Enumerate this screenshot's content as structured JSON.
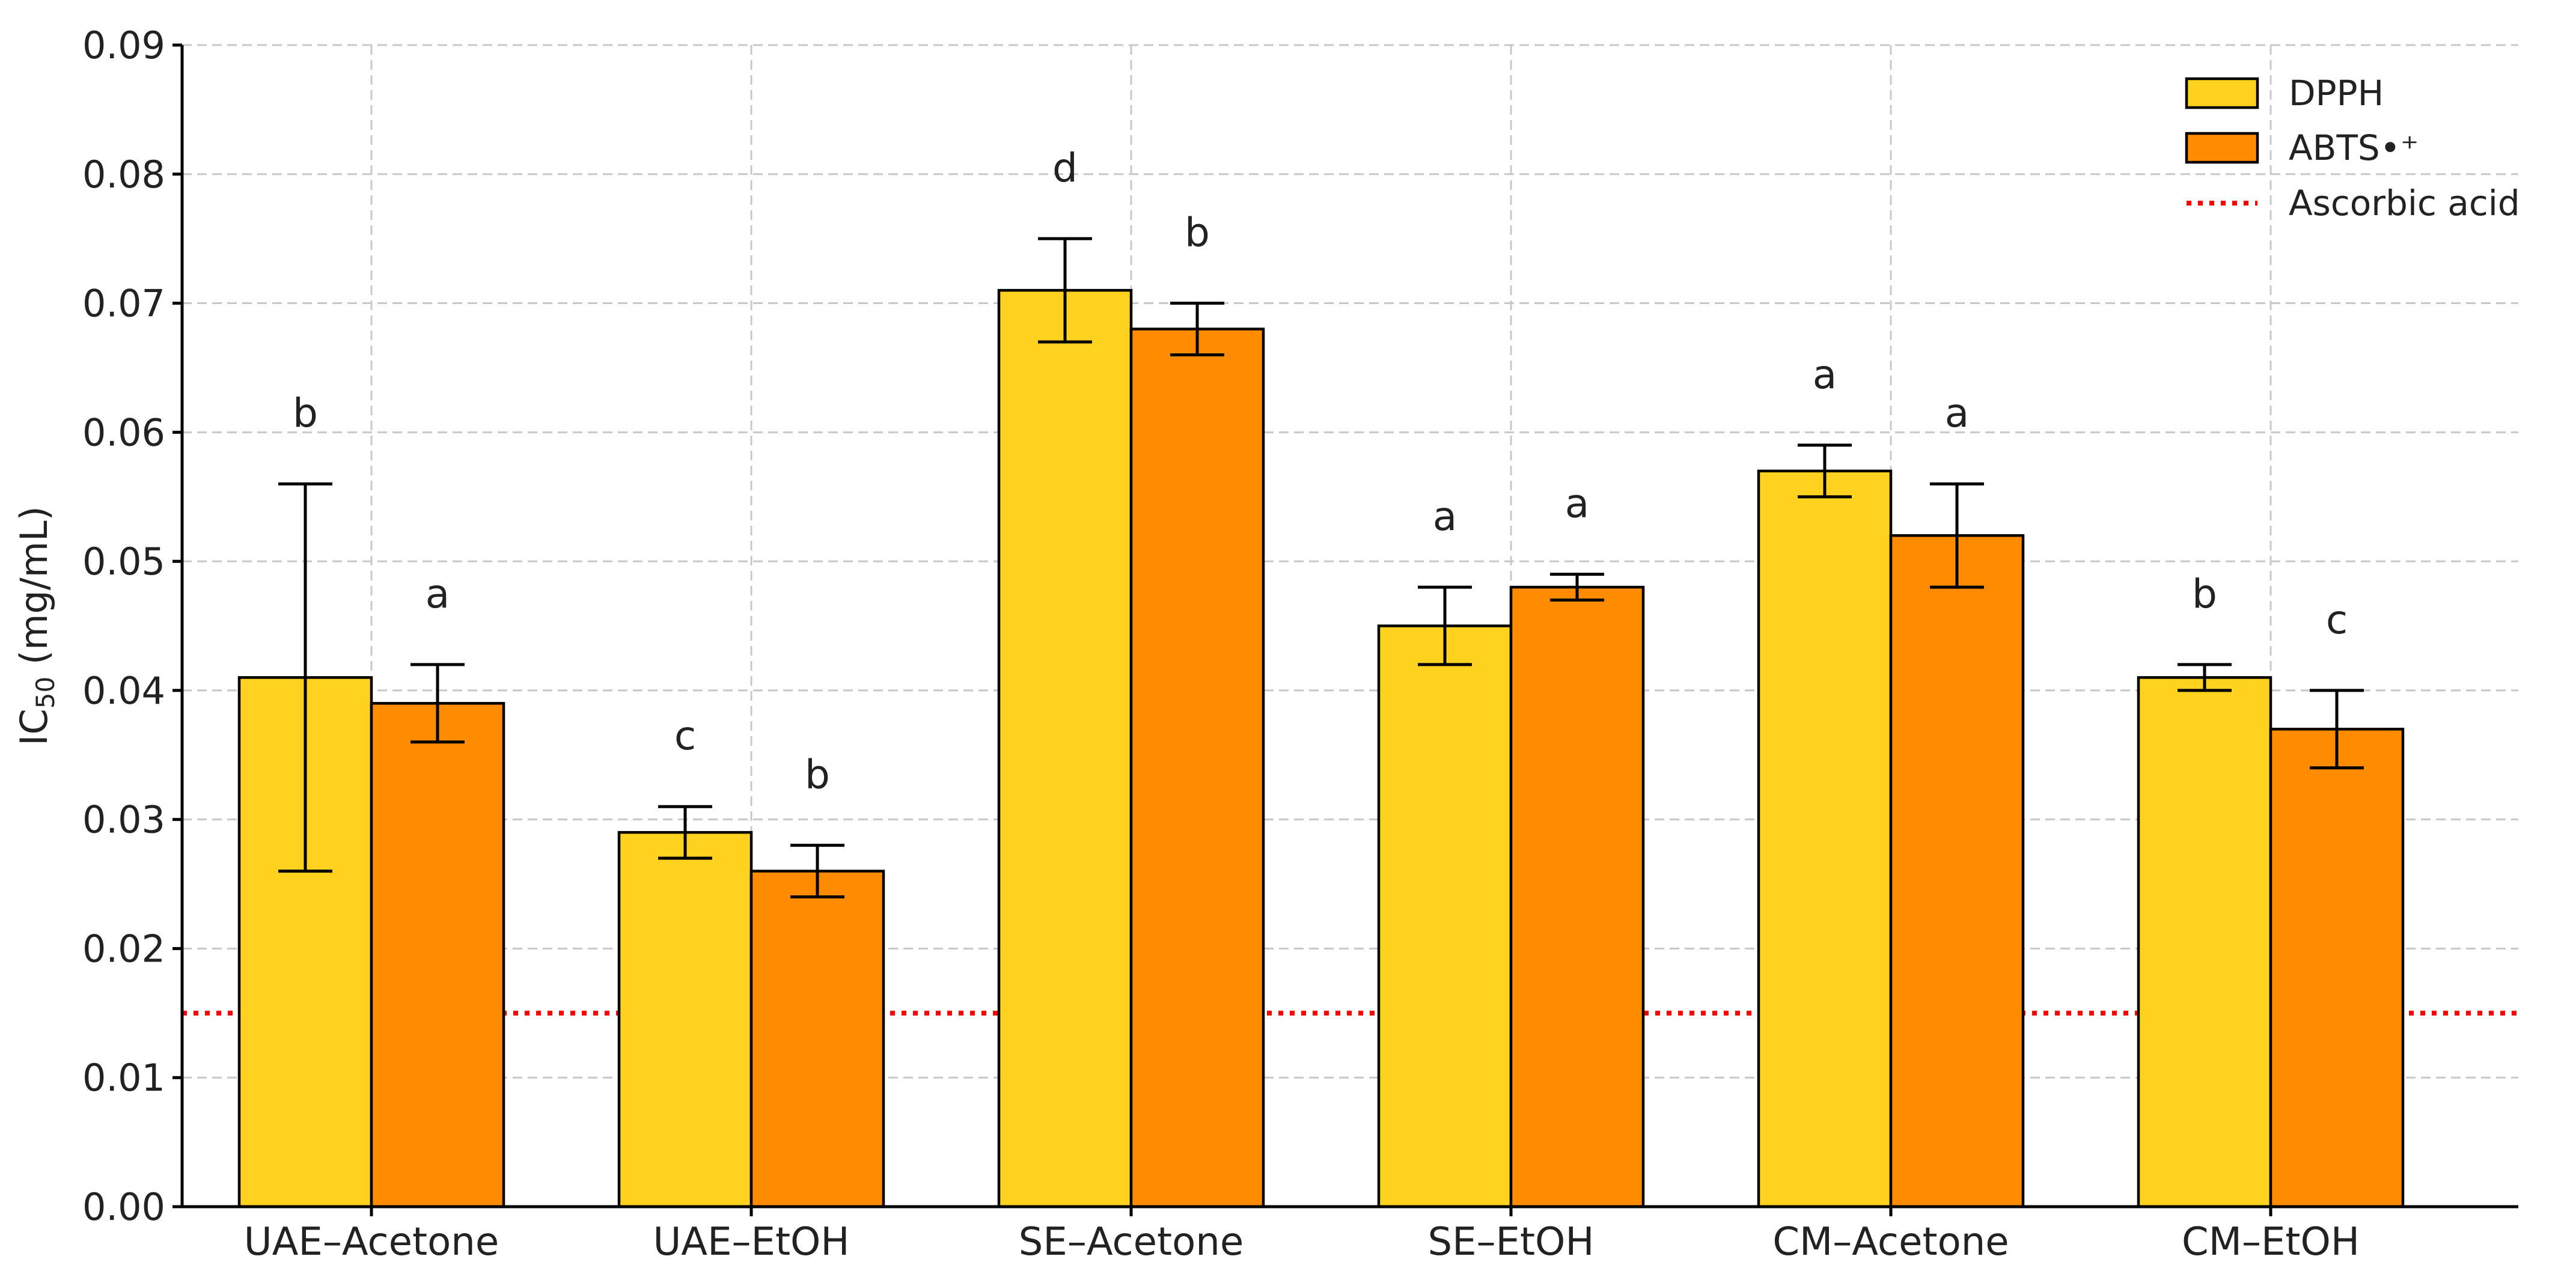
{
  "chart_data": {
    "type": "bar",
    "title": "",
    "xlabel": "",
    "ylabel": "IC",
    "ylabel_subscript": "50",
    "ylabel_unit": " (mg/mL)",
    "ylim": [
      0,
      0.09
    ],
    "yticks": [
      "0.00",
      "0.01",
      "0.02",
      "0.03",
      "0.04",
      "0.05",
      "0.06",
      "0.07",
      "0.08",
      "0.09"
    ],
    "grid": true,
    "legend_position": "top-right",
    "categories": [
      "UAE–Acetone",
      "UAE–EtOH",
      "SE–Acetone",
      "SE–EtOH",
      "CM–Acetone",
      "CM–EtOH"
    ],
    "series": [
      {
        "name": "DPPH",
        "color": "#FFD21F",
        "values": [
          0.041,
          0.029,
          0.071,
          0.045,
          0.057,
          0.041
        ],
        "errors": [
          0.015,
          0.002,
          0.004,
          0.003,
          0.002,
          0.001
        ],
        "letters": [
          "b",
          "c",
          "d",
          "a",
          "a",
          "b"
        ]
      },
      {
        "name": "ABTS•⁺",
        "color": "#FF8C00",
        "values": [
          0.039,
          0.026,
          0.068,
          0.048,
          0.052,
          0.037
        ],
        "errors": [
          0.003,
          0.002,
          0.002,
          0.001,
          0.004,
          0.003
        ],
        "letters": [
          "a",
          "b",
          "b",
          "a",
          "a",
          "c"
        ]
      }
    ],
    "reference": {
      "name": "Ascorbic acid",
      "value": 0.015,
      "color": "#FF0000"
    }
  }
}
